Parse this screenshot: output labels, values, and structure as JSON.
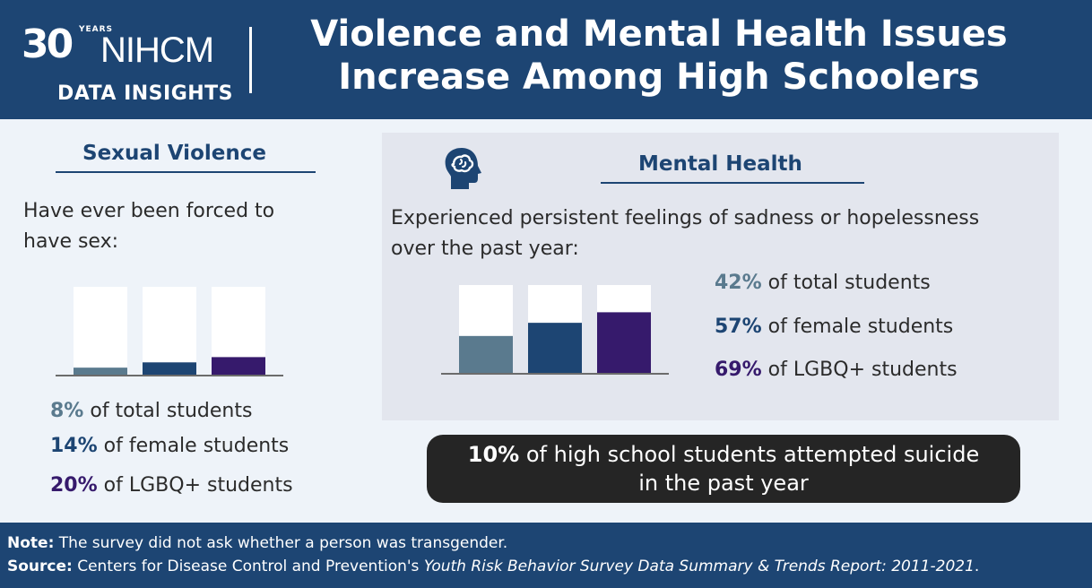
{
  "header": {
    "logo": {
      "number": "30",
      "years": "YEARS",
      "brand": "NIHCM",
      "subtitle": "DATA INSIGHTS"
    },
    "title_line1": "Violence and Mental Health Issues",
    "title_line2": "Increase Among High Schoolers"
  },
  "sexual_violence": {
    "title": "Sexual Violence",
    "question_line1": "Have ever been forced to",
    "question_line2": "have sex:",
    "stats": [
      {
        "pct": "8%",
        "label": " of total students"
      },
      {
        "pct": "14%",
        "label": " of female students"
      },
      {
        "pct": "20%",
        "label": " of LGBQ+ students"
      }
    ]
  },
  "mental_health": {
    "title": "Mental Health",
    "icon": "head-brain-icon",
    "question_line1": "Experienced persistent feelings of sadness or hopelessness",
    "question_line2": "over the past year:",
    "stats": [
      {
        "pct": "42%",
        "label": " of total students"
      },
      {
        "pct": "57%",
        "label": " of female students"
      },
      {
        "pct": "69%",
        "label": " of LGBQ+ students"
      }
    ]
  },
  "callout": {
    "pct": "10%",
    "text_line1": " of high school students attempted suicide",
    "text_line2": "in the past year"
  },
  "footer": {
    "note_label": "Note:",
    "note_text": " The survey did not ask whether a person was transgender.",
    "source_label": "Source:",
    "source_text": " Centers for Disease Control and Prevention's ",
    "source_title": "Youth Risk Behavior Survey Data Summary & Trends Report: 2011-2021",
    "source_end": "."
  },
  "colors": {
    "navy": "#1d4573",
    "total": "#5a7a8e",
    "female": "#1d4573",
    "lgbq": "#361a6c",
    "bar_bg": "#ffffff"
  },
  "chart_data": [
    {
      "type": "bar",
      "title": "Sexual Violence",
      "categories": [
        "Total students",
        "Female students",
        "LGBQ+ students"
      ],
      "values": [
        8,
        14,
        20
      ],
      "ylim": [
        0,
        100
      ],
      "xlabel": "",
      "ylabel": ""
    },
    {
      "type": "bar",
      "title": "Mental Health",
      "categories": [
        "Total students",
        "Female students",
        "LGBQ+ students"
      ],
      "values": [
        42,
        57,
        69
      ],
      "ylim": [
        0,
        100
      ],
      "xlabel": "",
      "ylabel": ""
    }
  ]
}
